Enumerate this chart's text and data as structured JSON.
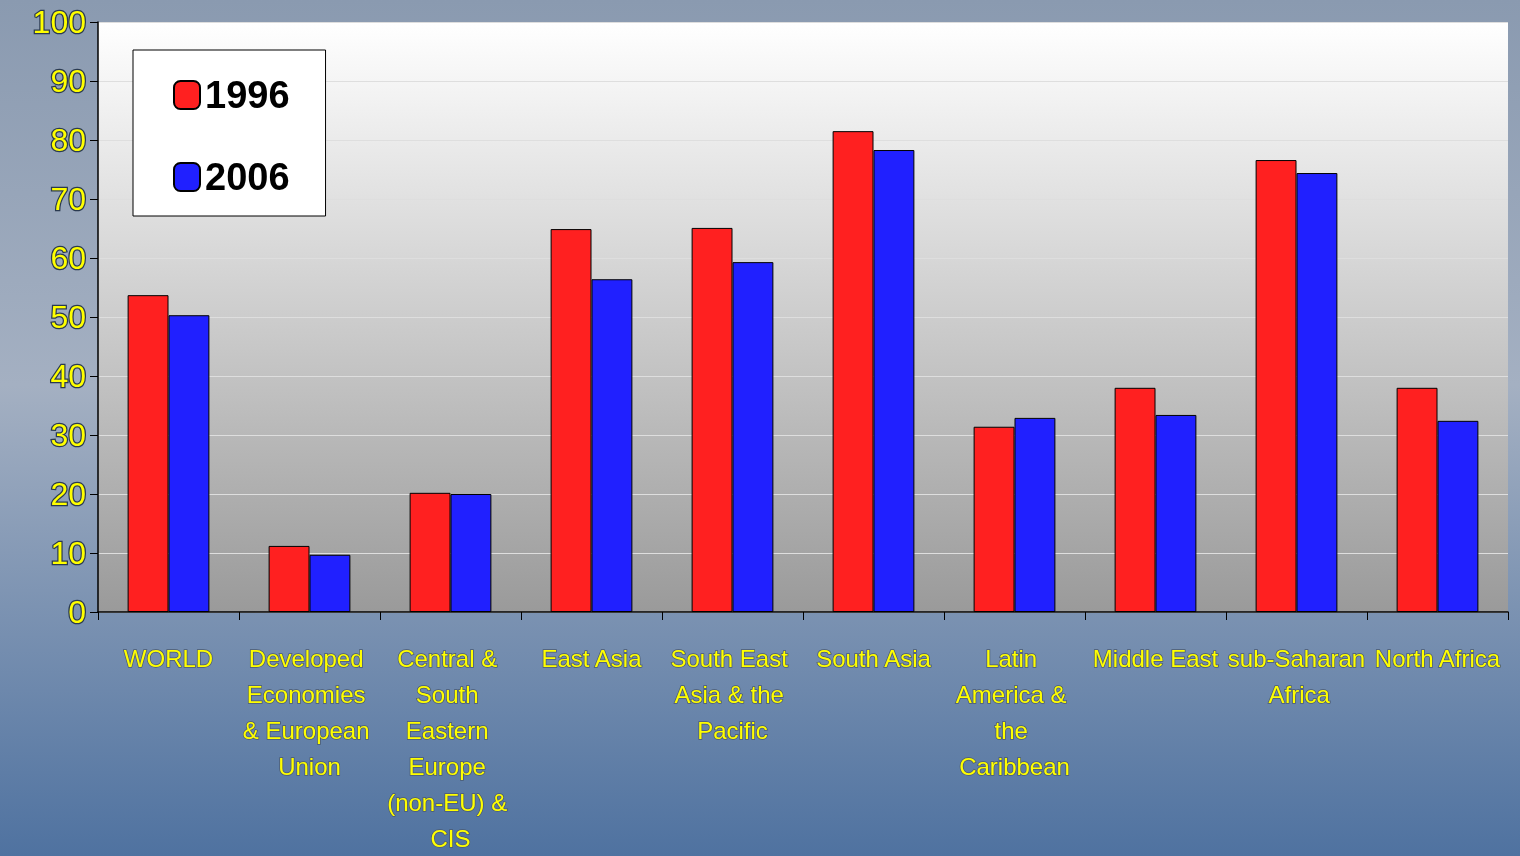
{
  "chart_data": {
    "type": "bar",
    "categories": [
      "WORLD",
      "Developed Economies & European Union",
      "Central & South Eastern Europe (non-EU) & CIS",
      "East Asia",
      "South East Asia & the Pacific",
      "South Asia",
      "Latin America & the Caribbean",
      "Middle East",
      "sub-Saharan Africa",
      "North Africa"
    ],
    "series": [
      {
        "name": "1996",
        "color": "#ff2020",
        "values": [
          53.7,
          11.2,
          20.2,
          64.9,
          65.1,
          81.5,
          31.4,
          38.0,
          76.6,
          38.0
        ]
      },
      {
        "name": "2006",
        "color": "#2020ff",
        "values": [
          50.3,
          9.7,
          20.0,
          56.4,
          59.3,
          78.3,
          32.9,
          33.4,
          74.4,
          32.4
        ]
      }
    ],
    "ylim": [
      0,
      100
    ],
    "yticks": [
      0,
      10,
      20,
      30,
      40,
      50,
      60,
      70,
      80,
      90,
      100
    ],
    "grid": "y",
    "legend": "top left"
  }
}
